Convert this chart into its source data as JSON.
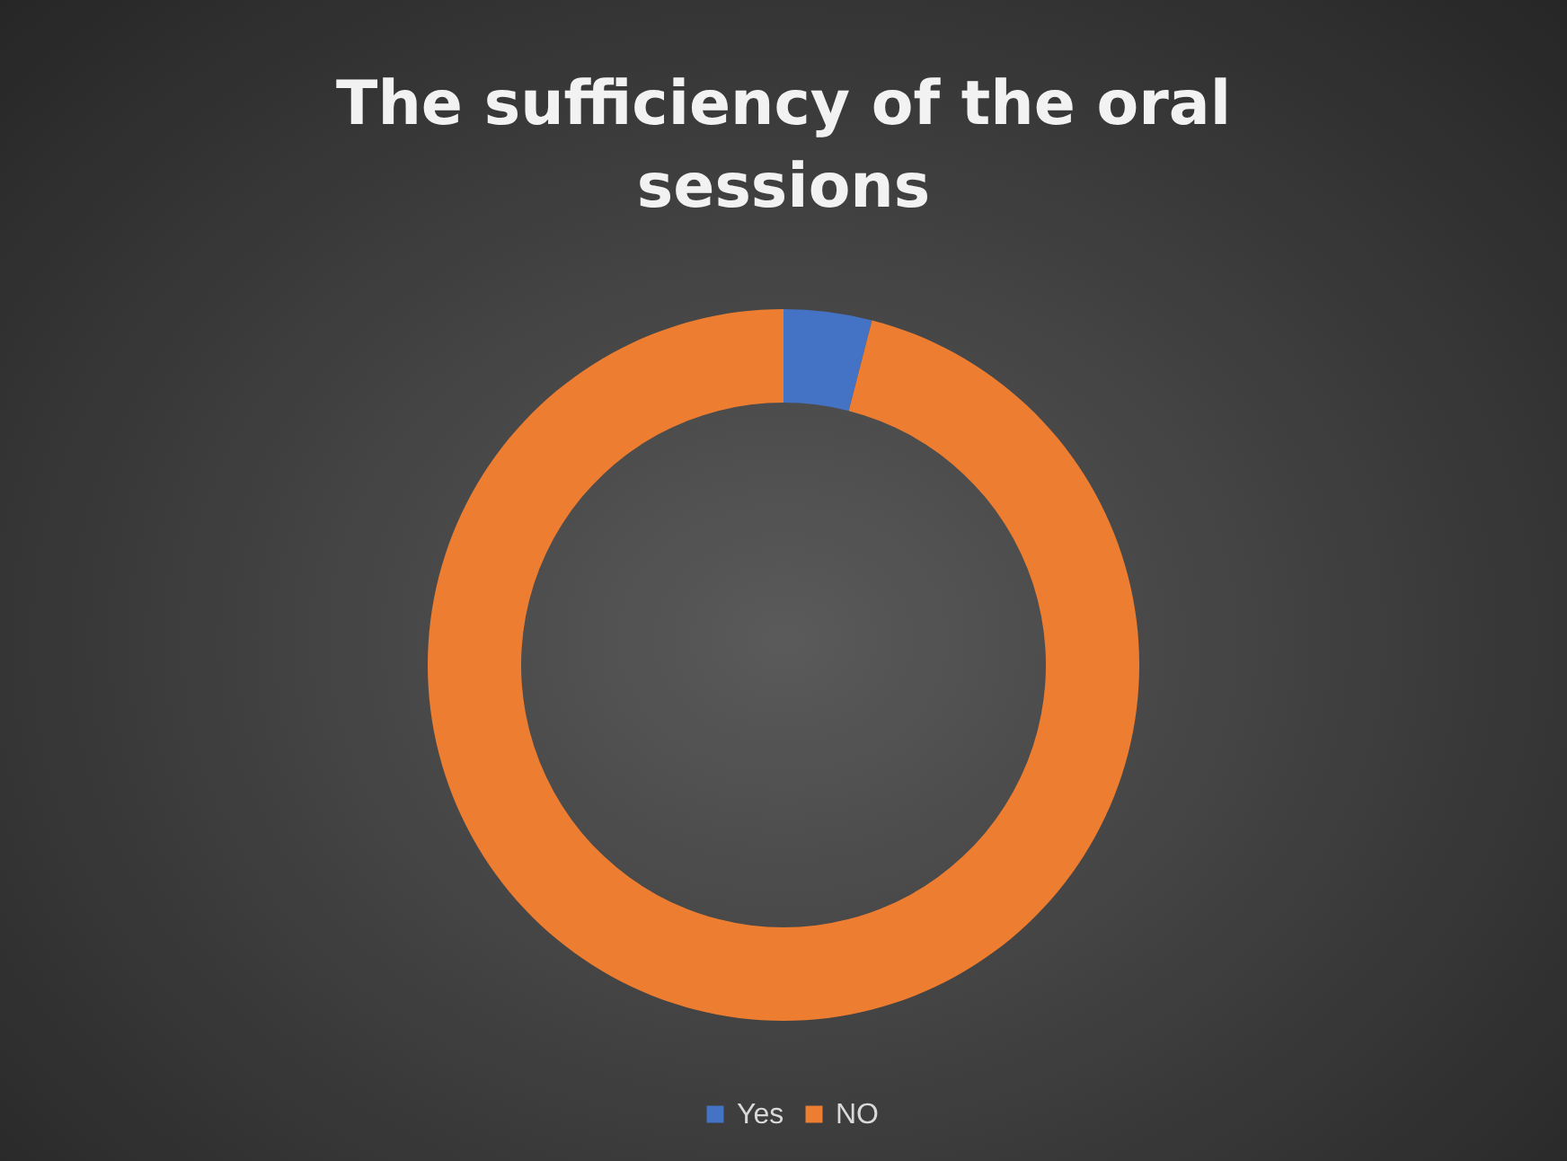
{
  "chart_data": {
    "type": "donut",
    "title": "The sufficiency of the oral sessions",
    "categories": [
      "Yes",
      "NO"
    ],
    "values": [
      4,
      96
    ],
    "colors": [
      "#4472c4",
      "#ed7d31"
    ],
    "legend": "bottom"
  }
}
